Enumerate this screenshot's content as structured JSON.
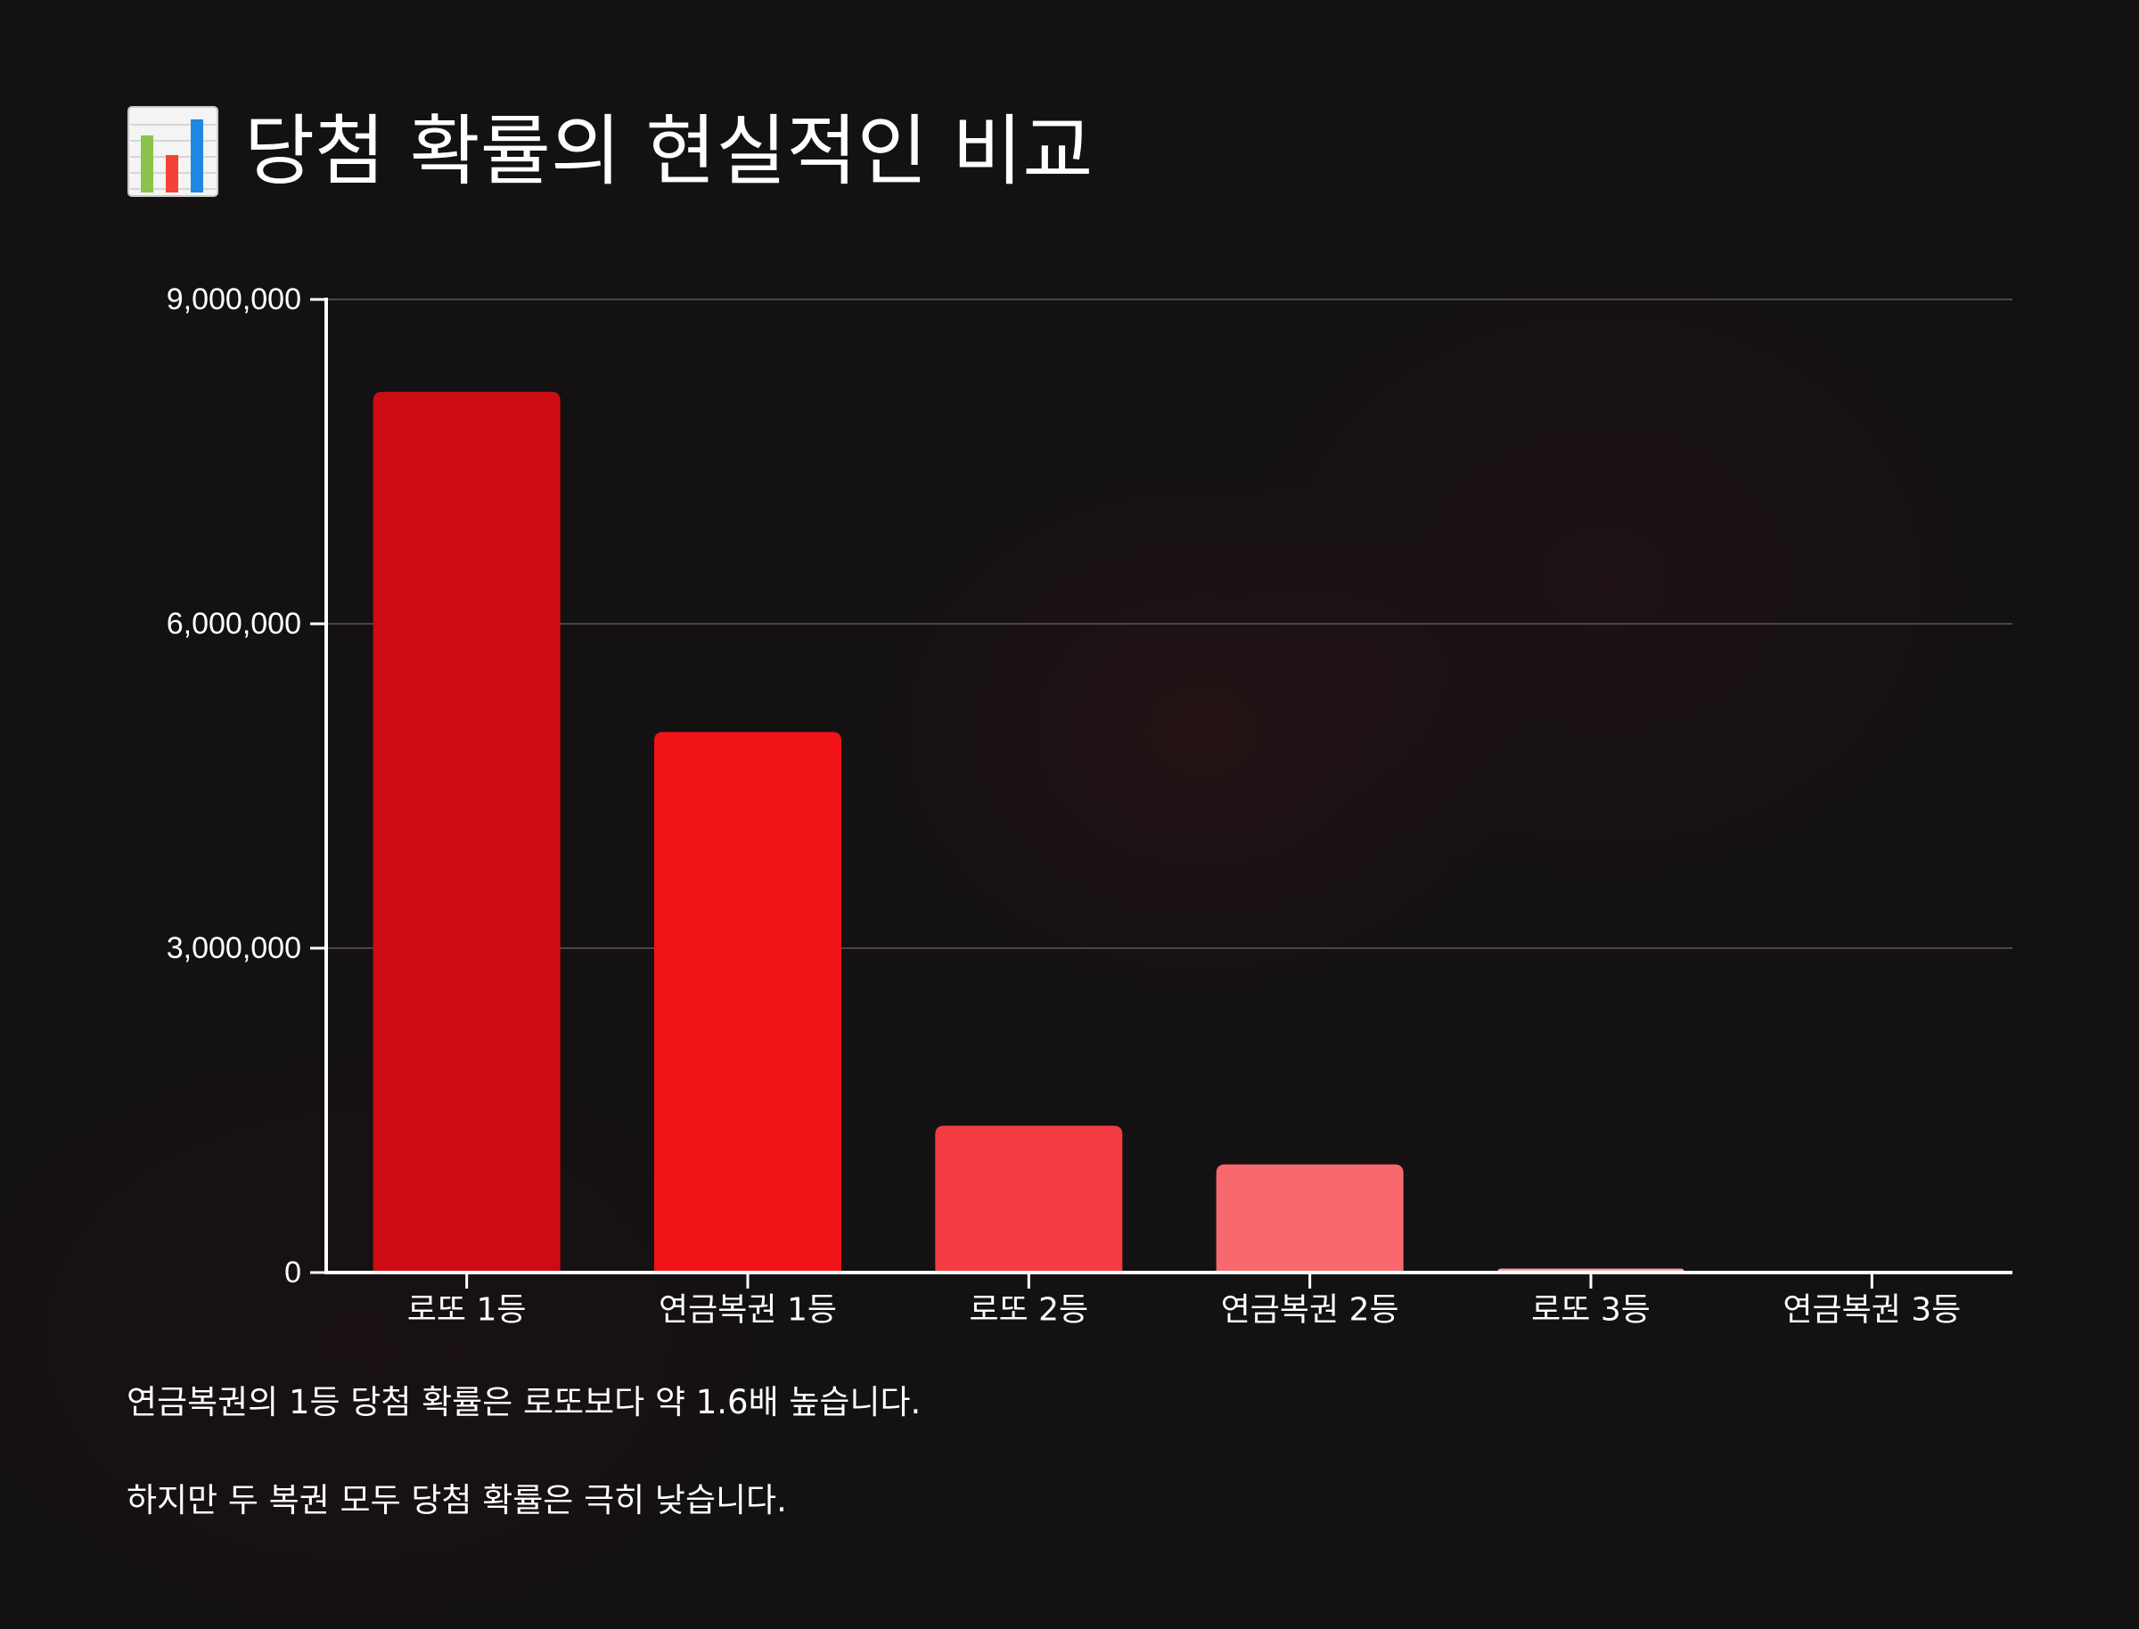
{
  "title": {
    "icon": "bar-chart-icon",
    "text": "당첨 확률의 현실적인 비교"
  },
  "chart_data": {
    "type": "bar",
    "categories": [
      "로또 1등",
      "연금복권 1등",
      "로또 2등",
      "연금복권 2등",
      "로또 3등",
      "연금복권 3등"
    ],
    "values": [
      8145060,
      5000000,
      1357510,
      1000000,
      35724,
      0
    ],
    "colors": [
      "#cc0c12",
      "#f21318",
      "#f53b42",
      "#f7696d",
      "#f9a8aa",
      "#fbd0d1"
    ],
    "ylim": [
      0,
      9000000
    ],
    "yticks": [
      0,
      3000000,
      6000000,
      9000000
    ],
    "ytick_labels": [
      "0",
      "3,000,000",
      "6,000,000",
      "9,000,000"
    ],
    "grid": true,
    "xlabel": "",
    "ylabel": ""
  },
  "notes": [
    "연금복권의 1등 당첨 확률은 로또보다 약 1.6배 높습니다.",
    "하지만 두 복권 모두 당첨 확률은 극히 낮습니다."
  ]
}
